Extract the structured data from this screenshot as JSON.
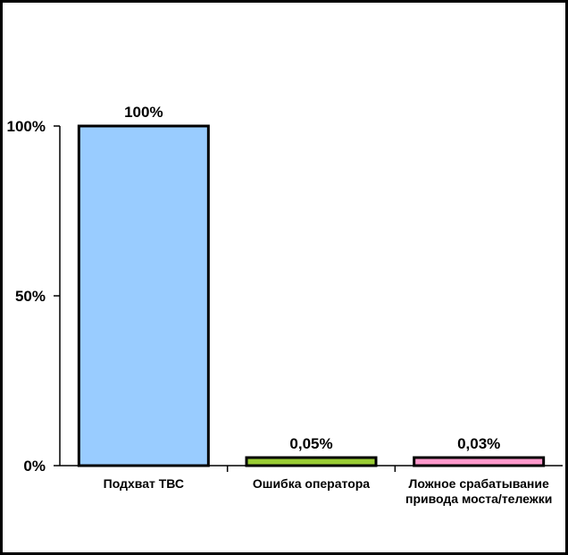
{
  "chart_data": {
    "type": "bar",
    "categories": [
      [
        "Подхват ТВС"
      ],
      [
        "Ошибка оператора"
      ],
      [
        "Ложное срабатывание",
        "привода моста/тележки"
      ]
    ],
    "values": [
      100,
      0.05,
      0.03
    ],
    "data_labels": [
      "100%",
      "0,05%",
      "0,03%"
    ],
    "colors": [
      "#99CCFF",
      "#99CC33",
      "#FF99CC"
    ],
    "y_ticks": [
      {
        "value": 0,
        "label": "0%"
      },
      {
        "value": 50,
        "label": "50%"
      },
      {
        "value": 100,
        "label": "100%"
      }
    ],
    "ylim": [
      0,
      100
    ],
    "grid": false,
    "legend": "none"
  }
}
